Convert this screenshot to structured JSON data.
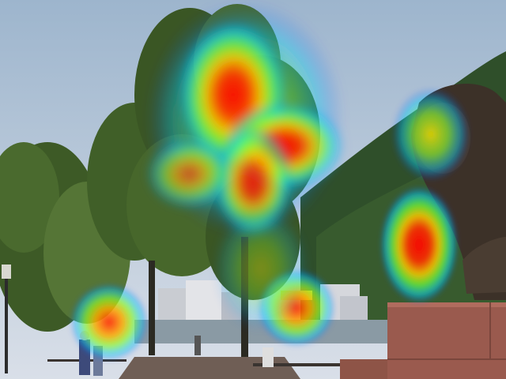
{
  "image": {
    "description_kind": "photo-with-saliency-heatmap-overlay",
    "overlay": "heatmap",
    "colormap": [
      "#0000ff",
      "#00ffff",
      "#00ff00",
      "#ffff00",
      "#ff0000"
    ],
    "palette": {
      "sky_top": "#9fb6cf",
      "sky_bottom": "#d8dde6",
      "tree_dark": "#2f4a22",
      "tree_mid": "#4d6b2f",
      "hill": "#2f4f2a",
      "path": "#6a5a52",
      "wall_red": "#9a5a4e",
      "statue": "#3c3128"
    },
    "heat_spots": [
      {
        "name": "treetop-hotspot",
        "intensity": 1.0
      },
      {
        "name": "statue-head-hotspot",
        "intensity": 0.5
      },
      {
        "name": "statue-hand-hotspot",
        "intensity": 0.9
      },
      {
        "name": "signboard-hotspot",
        "intensity": 0.75
      },
      {
        "name": "pedestrians-hotspot",
        "intensity": 0.8
      }
    ]
  }
}
